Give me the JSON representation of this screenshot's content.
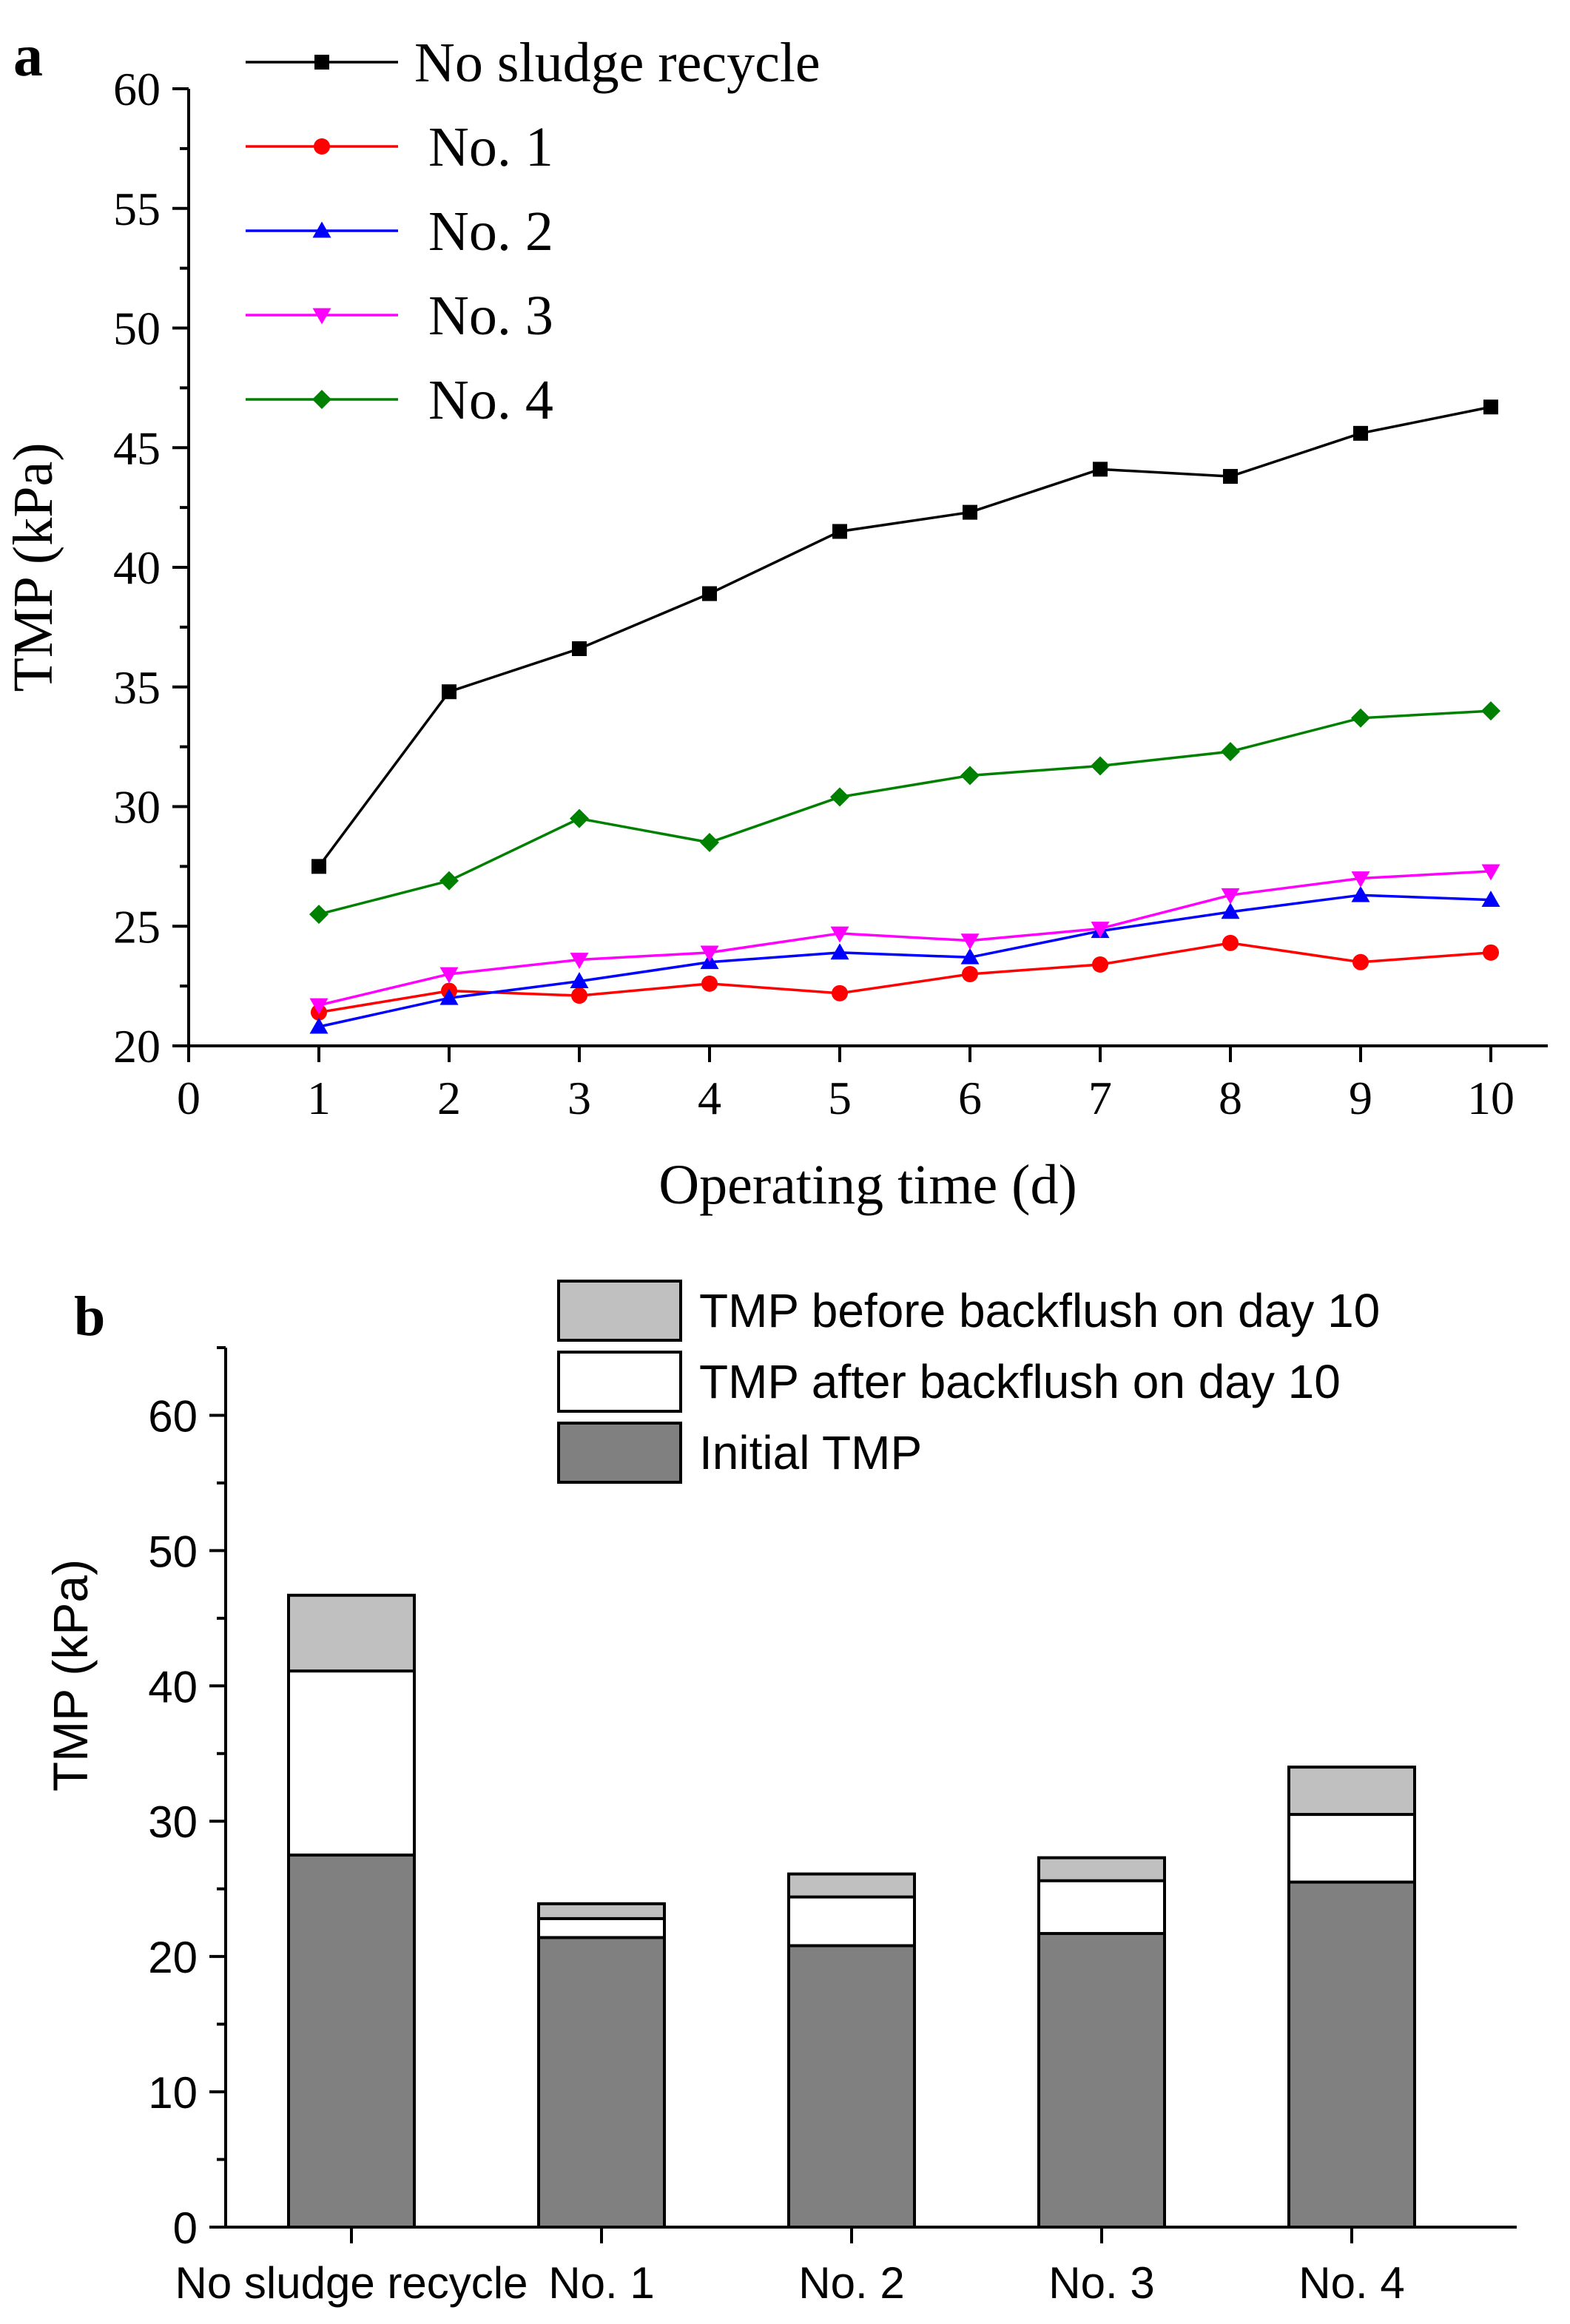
{
  "panel_labels": {
    "a": "a",
    "b": "b"
  },
  "colors": {
    "no_sludge": "#000000",
    "no1": "#ff0000",
    "no2": "#0000ff",
    "no3": "#ff00ff",
    "no4": "#008000",
    "before_backflush": "#c0c0c0",
    "after_backflush": "#ffffff",
    "initial": "#808080"
  },
  "chart_data": [
    {
      "type": "line",
      "panel": "a",
      "xlabel": "Operating time (d)",
      "ylabel": "TMP (kPa)",
      "xlim": [
        0,
        10.4
      ],
      "ylim": [
        20,
        60
      ],
      "xticks": [
        0,
        1,
        2,
        3,
        4,
        5,
        6,
        7,
        8,
        9,
        10
      ],
      "yticks": [
        20,
        25,
        30,
        35,
        40,
        45,
        50,
        55,
        60
      ],
      "x": [
        1,
        2,
        3,
        4,
        5,
        6,
        7,
        8,
        9,
        10
      ],
      "legend_position": "top-left",
      "series": [
        {
          "name": "No sludge recycle",
          "marker": "square",
          "color": "#000000",
          "values": [
            27.5,
            34.8,
            36.6,
            38.9,
            41.5,
            42.3,
            44.1,
            43.8,
            45.6,
            46.7
          ]
        },
        {
          "name": " No. 1",
          "marker": "circle",
          "color": "#ff0000",
          "values": [
            21.4,
            22.3,
            22.1,
            22.6,
            22.2,
            23.0,
            23.4,
            24.3,
            23.5,
            23.9
          ]
        },
        {
          "name": " No. 2",
          "marker": "triangle-up",
          "color": "#0000ff",
          "values": [
            20.8,
            22.0,
            22.7,
            23.5,
            23.9,
            23.7,
            24.8,
            25.6,
            26.3,
            26.1
          ]
        },
        {
          "name": " No. 3",
          "marker": "triangle-down",
          "color": "#ff00ff",
          "values": [
            21.7,
            23.0,
            23.6,
            23.9,
            24.7,
            24.4,
            24.9,
            26.3,
            27.0,
            27.3
          ]
        },
        {
          "name": " No. 4",
          "marker": "diamond",
          "color": "#008000",
          "values": [
            25.5,
            26.9,
            29.5,
            28.5,
            30.4,
            31.3,
            31.7,
            32.3,
            33.7,
            34.0
          ]
        }
      ]
    },
    {
      "type": "bar",
      "stacked": "overlay",
      "panel": "b",
      "xlabel": "",
      "ylabel": "TMP (kPa)",
      "ylim": [
        0,
        65
      ],
      "yticks": [
        0,
        10,
        20,
        30,
        40,
        50,
        60
      ],
      "categories": [
        "No sludge recycle",
        "No. 1",
        "No. 2",
        "No. 3",
        "No. 4"
      ],
      "legend_position": "top-right",
      "series": [
        {
          "name": "TMP before backflush on day 10",
          "color": "#c0c0c0",
          "values": [
            46.7,
            23.9,
            26.1,
            27.3,
            34.0
          ]
        },
        {
          "name": "TMP after backflush on day 10",
          "color": "#ffffff",
          "values": [
            41.1,
            22.8,
            24.4,
            25.6,
            30.5
          ]
        },
        {
          "name": "Initial TMP",
          "color": "#808080",
          "values": [
            27.5,
            21.4,
            20.8,
            21.7,
            25.5
          ]
        }
      ]
    }
  ]
}
